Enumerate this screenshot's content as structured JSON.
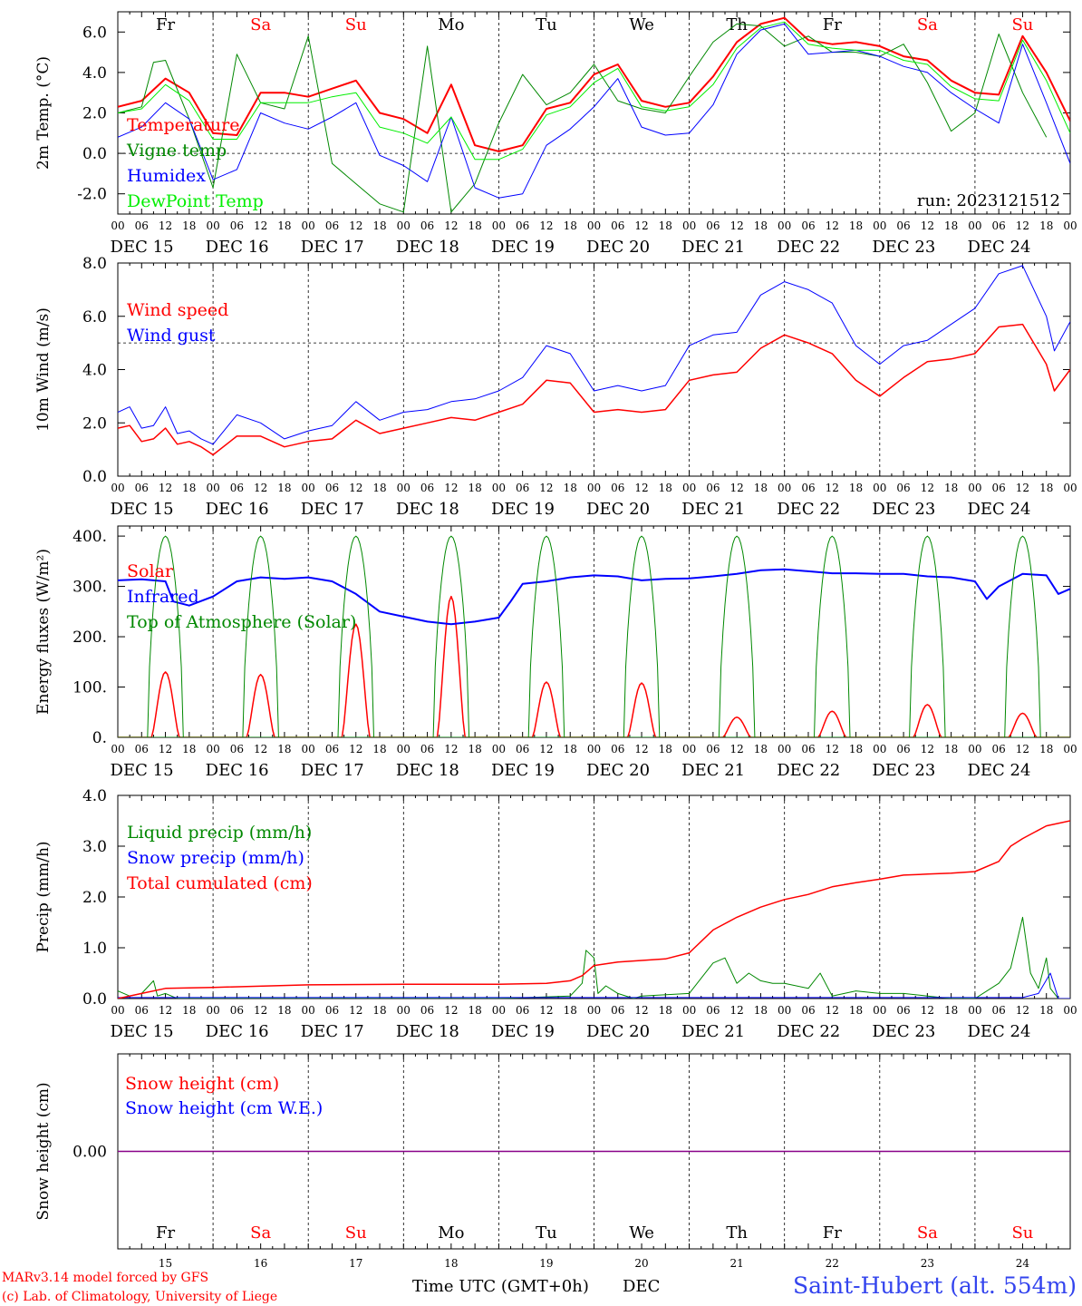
{
  "run_label": "run: 2023121512",
  "footer": {
    "credit_line1": "MARv3.14 model forced by GFS",
    "credit_line2": "(c) Lab. of Climatology, University of Liege",
    "time_label": "Time UTC (GMT+0h)",
    "month_label": "DEC",
    "station": "Saint-Hubert (alt. 554m)"
  },
  "axis": {
    "hour_ticks": [
      "00",
      "06",
      "12",
      "18"
    ],
    "end_tick": "00",
    "date_labels": [
      "DEC 15",
      "DEC 16",
      "DEC 17",
      "DEC 18",
      "DEC 19",
      "DEC 20",
      "DEC 21",
      "DEC 22",
      "DEC 23",
      "DEC 24"
    ],
    "day_numbers": [
      "15",
      "16",
      "17",
      "18",
      "19",
      "20",
      "21",
      "22",
      "23",
      "24"
    ]
  },
  "days": [
    {
      "label": "Fr",
      "weekend": false
    },
    {
      "label": "Sa",
      "weekend": true
    },
    {
      "label": "Su",
      "weekend": true
    },
    {
      "label": "Mo",
      "weekend": false
    },
    {
      "label": "Tu",
      "weekend": false
    },
    {
      "label": "We",
      "weekend": false
    },
    {
      "label": "Th",
      "weekend": false
    },
    {
      "label": "Fr",
      "weekend": false
    },
    {
      "label": "Sa",
      "weekend": true
    },
    {
      "label": "Su",
      "weekend": true
    }
  ],
  "colors": {
    "red": "#ff0000",
    "green": "#008800",
    "blue": "#0000ff",
    "lightgreen": "#00ee00",
    "purple": "#880088",
    "weekday_text": "#000000",
    "weekend_text": "#ff0000",
    "station_text": "#3344ee"
  },
  "chart_data": [
    {
      "type": "line",
      "ylabel": "2m Temp. (°C)",
      "ylim": [
        -3,
        7
      ],
      "yticks": [
        -2,
        0,
        2,
        4,
        6
      ],
      "ytick_labels": [
        "-2.0",
        "0.0",
        "2.0",
        "4.0",
        "6.0"
      ],
      "ref_line": 0,
      "series": [
        {
          "name": "Temperature",
          "color": "red",
          "width": 2,
          "t": [
            0,
            6,
            12,
            18,
            24,
            30,
            36,
            42,
            48,
            54,
            60,
            66,
            72,
            78,
            84,
            90,
            96,
            102,
            108,
            114,
            120,
            126,
            132,
            138,
            144,
            150,
            156,
            162,
            168,
            174,
            180,
            186,
            192,
            198,
            204,
            210,
            216,
            222,
            228,
            234,
            240
          ],
          "v": [
            2.3,
            2.6,
            3.7,
            3.0,
            1.0,
            0.9,
            3.0,
            3.0,
            2.8,
            3.2,
            3.6,
            2.0,
            1.7,
            1.0,
            3.4,
            0.4,
            0.1,
            0.4,
            2.2,
            2.5,
            3.9,
            4.4,
            2.6,
            2.3,
            2.5,
            3.8,
            5.5,
            6.4,
            6.7,
            5.6,
            5.4,
            5.5,
            5.3,
            4.8,
            4.6,
            3.6,
            3.0,
            2.9,
            5.8,
            4.0,
            1.6
          ]
        },
        {
          "name": "Vigne temp",
          "color": "green",
          "width": 1,
          "t": [
            0,
            6,
            9,
            12,
            18,
            24,
            30,
            36,
            42,
            48,
            54,
            60,
            66,
            72,
            78,
            84,
            90,
            96,
            102,
            108,
            114,
            120,
            126,
            132,
            138,
            144,
            150,
            156,
            162,
            168,
            174,
            180,
            186,
            192,
            198,
            204,
            210,
            216,
            222,
            228,
            234,
            240
          ],
          "v": [
            2.0,
            2.3,
            4.5,
            4.6,
            1.7,
            -1.7,
            4.9,
            2.5,
            2.2,
            5.8,
            -0.5,
            -1.5,
            -2.5,
            -2.9,
            5.3,
            -2.9,
            -1.5,
            1.5,
            3.9,
            2.4,
            3.0,
            4.4,
            2.6,
            2.2,
            2.0,
            3.8,
            5.5,
            6.4,
            6.3,
            5.3,
            5.8,
            5.0,
            5.0,
            4.8,
            5.4,
            3.5,
            1.1,
            2.0,
            5.9,
            3.0,
            0.8
          ]
        },
        {
          "name": "Humidex",
          "color": "blue",
          "width": 1,
          "t": [
            0,
            6,
            12,
            18,
            24,
            30,
            36,
            42,
            48,
            54,
            60,
            66,
            72,
            78,
            84,
            90,
            96,
            102,
            108,
            114,
            120,
            126,
            132,
            138,
            144,
            150,
            156,
            162,
            168,
            174,
            180,
            186,
            192,
            198,
            204,
            210,
            216,
            222,
            228,
            234,
            240
          ],
          "v": [
            0.8,
            1.3,
            2.5,
            1.7,
            -1.3,
            -0.8,
            2.0,
            1.5,
            1.2,
            1.8,
            2.5,
            -0.1,
            -0.6,
            -1.4,
            1.8,
            -1.7,
            -2.2,
            -2.0,
            0.4,
            1.2,
            2.3,
            3.7,
            1.3,
            0.9,
            1.0,
            2.4,
            4.9,
            6.1,
            6.4,
            4.9,
            5.0,
            5.1,
            4.8,
            4.3,
            4.0,
            3.0,
            2.2,
            1.5,
            5.4,
            2.5,
            -0.5
          ]
        },
        {
          "name": "DewPoint Temp",
          "color": "lightgreen",
          "width": 1,
          "t": [
            0,
            6,
            12,
            18,
            24,
            30,
            36,
            42,
            48,
            54,
            60,
            66,
            72,
            78,
            84,
            90,
            96,
            102,
            108,
            114,
            120,
            126,
            132,
            138,
            144,
            150,
            156,
            162,
            168,
            174,
            180,
            186,
            192,
            198,
            204,
            210,
            216,
            222,
            228,
            234,
            240
          ],
          "v": [
            2.0,
            2.2,
            3.4,
            2.6,
            0.7,
            0.7,
            2.5,
            2.5,
            2.5,
            2.8,
            3.0,
            1.3,
            1.0,
            0.5,
            1.8,
            -0.3,
            -0.3,
            0.2,
            1.9,
            2.3,
            3.5,
            4.2,
            2.3,
            2.1,
            2.3,
            3.4,
            5.2,
            6.2,
            6.5,
            5.4,
            5.2,
            5.1,
            5.1,
            4.6,
            4.4,
            3.3,
            2.7,
            2.6,
            5.6,
            3.6,
            1.0
          ]
        }
      ],
      "legend": [
        "Temperature",
        "Vigne temp",
        "Humidex",
        "DewPoint Temp"
      ]
    },
    {
      "type": "line",
      "ylabel": "10m Wind (m/s)",
      "ylim": [
        0,
        8
      ],
      "yticks": [
        0,
        2,
        4,
        6,
        8
      ],
      "ytick_labels": [
        "0.0",
        "2.0",
        "4.0",
        "6.0",
        "8.0"
      ],
      "ref_line": 5,
      "series": [
        {
          "name": "Wind speed",
          "color": "red",
          "width": 1.5,
          "t": [
            0,
            3,
            6,
            9,
            12,
            15,
            18,
            21,
            24,
            30,
            36,
            42,
            48,
            54,
            60,
            66,
            72,
            78,
            84,
            90,
            96,
            102,
            108,
            114,
            120,
            126,
            132,
            138,
            144,
            150,
            156,
            162,
            168,
            174,
            180,
            186,
            192,
            198,
            204,
            210,
            216,
            222,
            228,
            234,
            236,
            240
          ],
          "v": [
            1.8,
            1.9,
            1.3,
            1.4,
            1.8,
            1.2,
            1.3,
            1.1,
            0.8,
            1.5,
            1.5,
            1.1,
            1.3,
            1.4,
            2.1,
            1.6,
            1.8,
            2.0,
            2.2,
            2.1,
            2.4,
            2.7,
            3.6,
            3.5,
            2.4,
            2.5,
            2.4,
            2.5,
            3.6,
            3.8,
            3.9,
            4.8,
            5.3,
            5.0,
            4.6,
            3.6,
            3.0,
            3.7,
            4.3,
            4.4,
            4.6,
            5.6,
            5.7,
            4.2,
            3.2,
            4.0
          ]
        },
        {
          "name": "Wind gust",
          "color": "blue",
          "width": 1,
          "t": [
            0,
            3,
            6,
            9,
            12,
            15,
            18,
            21,
            24,
            30,
            36,
            42,
            48,
            54,
            60,
            66,
            72,
            78,
            84,
            90,
            96,
            102,
            108,
            114,
            120,
            126,
            132,
            138,
            144,
            150,
            156,
            162,
            168,
            174,
            180,
            186,
            192,
            198,
            204,
            210,
            216,
            222,
            228,
            234,
            236,
            240
          ],
          "v": [
            2.4,
            2.6,
            1.8,
            1.9,
            2.6,
            1.6,
            1.7,
            1.4,
            1.2,
            2.3,
            2.0,
            1.4,
            1.7,
            1.9,
            2.8,
            2.1,
            2.4,
            2.5,
            2.8,
            2.9,
            3.2,
            3.7,
            4.9,
            4.6,
            3.2,
            3.4,
            3.2,
            3.4,
            4.9,
            5.3,
            5.4,
            6.8,
            7.3,
            7.0,
            6.5,
            4.9,
            4.2,
            4.9,
            5.1,
            5.7,
            6.3,
            7.6,
            7.9,
            6.0,
            4.7,
            5.8
          ]
        }
      ],
      "legend": [
        "Wind speed",
        "Wind gust"
      ]
    },
    {
      "type": "line",
      "ylabel": "Energy fluxes (W/m²)",
      "ylim": [
        0,
        420
      ],
      "yticks": [
        0,
        100,
        200,
        300,
        400
      ],
      "ytick_labels": [
        "0.",
        "100.",
        "200.",
        "300.",
        "400."
      ],
      "series": [
        {
          "name": "Solar",
          "color": "red",
          "width": 1.5,
          "t": [
            0,
            8,
            10,
            11,
            12,
            13,
            14,
            15,
            16
          ],
          "v": [
            0,
            0,
            60,
            40,
            80,
            100,
            130,
            40,
            0
          ],
          "daily_peaks": [
            130,
            125,
            225,
            280,
            110,
            108,
            40,
            52,
            65,
            48
          ]
        },
        {
          "name": "Infrared",
          "color": "blue",
          "width": 2,
          "t": [
            0,
            6,
            12,
            14,
            18,
            24,
            30,
            36,
            42,
            48,
            54,
            60,
            66,
            72,
            78,
            84,
            90,
            96,
            99,
            102,
            108,
            114,
            120,
            126,
            132,
            138,
            144,
            150,
            156,
            162,
            168,
            174,
            180,
            186,
            192,
            198,
            204,
            210,
            216,
            219,
            222,
            228,
            234,
            237,
            240
          ],
          "v": [
            312,
            314,
            310,
            270,
            262,
            280,
            310,
            318,
            315,
            318,
            310,
            285,
            250,
            240,
            230,
            225,
            230,
            238,
            270,
            305,
            310,
            318,
            322,
            320,
            312,
            315,
            316,
            320,
            325,
            332,
            334,
            330,
            326,
            326,
            325,
            325,
            320,
            318,
            310,
            275,
            300,
            325,
            322,
            285,
            295
          ]
        },
        {
          "name": "Top of Atmosphere (Solar)",
          "color": "green",
          "width": 1,
          "t": [],
          "v": [],
          "daily_peak": 400
        }
      ],
      "legend": [
        "Solar",
        "Infrared",
        "Top of Atmosphere (Solar)"
      ]
    },
    {
      "type": "line",
      "ylabel": "Precip (mm/h)",
      "ylim": [
        0,
        4
      ],
      "yticks": [
        0,
        1,
        2,
        3,
        4
      ],
      "ytick_labels": [
        "0.0",
        "1.0",
        "2.0",
        "3.0",
        "4.0"
      ],
      "series": [
        {
          "name": "Liquid precip (mm/h)",
          "color": "green",
          "width": 1,
          "t": [
            0,
            3,
            6,
            9,
            10,
            12,
            15,
            18,
            24,
            60,
            96,
            114,
            117,
            118,
            120,
            121,
            123,
            126,
            130,
            132,
            144,
            150,
            153,
            156,
            159,
            162,
            165,
            168,
            174,
            177,
            180,
            186,
            192,
            198,
            204,
            210,
            216,
            222,
            225,
            228,
            230,
            232,
            234,
            235,
            237,
            240
          ],
          "v": [
            0.15,
            0.05,
            0.1,
            0.35,
            0.05,
            0.1,
            0.0,
            0.0,
            0.0,
            0.0,
            0.0,
            0.05,
            0.3,
            0.95,
            0.8,
            0.1,
            0.25,
            0.1,
            0.0,
            0.05,
            0.1,
            0.7,
            0.8,
            0.3,
            0.5,
            0.35,
            0.3,
            0.3,
            0.2,
            0.5,
            0.05,
            0.15,
            0.1,
            0.1,
            0.05,
            0.0,
            0.0,
            0.3,
            0.6,
            1.6,
            0.5,
            0.2,
            0.8,
            0.2,
            0.0,
            0.0
          ]
        },
        {
          "name": "Snow precip (mm/h)",
          "color": "blue",
          "width": 1,
          "t": [
            0,
            228,
            232,
            235,
            237,
            240
          ],
          "v": [
            0.02,
            0.02,
            0.1,
            0.5,
            0.0,
            0.0
          ]
        },
        {
          "name": "Total cumulated (cm)",
          "color": "red",
          "width": 1.5,
          "t": [
            0,
            6,
            12,
            24,
            48,
            72,
            96,
            108,
            114,
            117,
            120,
            126,
            138,
            144,
            150,
            156,
            162,
            168,
            174,
            180,
            186,
            192,
            198,
            204,
            210,
            216,
            222,
            225,
            228,
            234,
            240
          ],
          "v": [
            0.0,
            0.1,
            0.2,
            0.22,
            0.27,
            0.28,
            0.28,
            0.3,
            0.35,
            0.45,
            0.65,
            0.72,
            0.78,
            0.9,
            1.35,
            1.6,
            1.8,
            1.95,
            2.05,
            2.2,
            2.28,
            2.35,
            2.43,
            2.45,
            2.47,
            2.5,
            2.7,
            3.0,
            3.15,
            3.4,
            3.5
          ]
        }
      ],
      "legend": [
        "Liquid precip (mm/h)",
        "Snow precip (mm/h)",
        "Total cumulated (cm)"
      ]
    },
    {
      "type": "line",
      "ylabel": "Snow height (cm)",
      "ylim": [
        -1,
        1
      ],
      "yticks": [
        0
      ],
      "ytick_labels": [
        "0.00"
      ],
      "series": [
        {
          "name": "Snow height (cm)",
          "color": "purple",
          "width": 1.5,
          "t": [
            0,
            240
          ],
          "v": [
            0,
            0
          ]
        }
      ],
      "legend": [
        "Snow height (cm)",
        "Snow height (cm W.E.)"
      ],
      "legend_colors": [
        "red",
        "blue"
      ]
    }
  ]
}
